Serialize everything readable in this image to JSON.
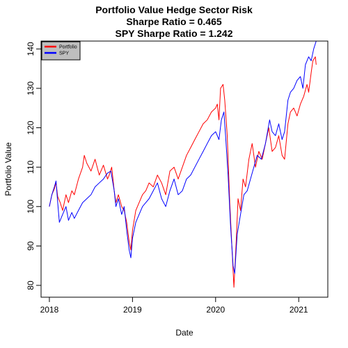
{
  "chart_data": {
    "type": "line",
    "title": [
      "Portfolio Value Hedge Sector Risk",
      "Sharpe Ratio = 0.465",
      "SPY Sharpe Ratio = 1.242"
    ],
    "xlabel": "Date",
    "ylabel": "Portfolio Value",
    "xlim": [
      2017.9,
      2021.35
    ],
    "ylim": [
      77,
      142
    ],
    "xticks": [
      2018,
      2019,
      2020,
      2021
    ],
    "yticks": [
      80,
      90,
      100,
      110,
      120,
      130,
      140
    ],
    "grid": false,
    "legend_position": "top-left",
    "series": [
      {
        "name": "Portfolio",
        "color": "#ff0000",
        "points": [
          [
            2018.0,
            100.0
          ],
          [
            2018.03,
            103.0
          ],
          [
            2018.06,
            104.5
          ],
          [
            2018.08,
            106.0
          ],
          [
            2018.1,
            102.5
          ],
          [
            2018.13,
            101.0
          ],
          [
            2018.16,
            99.0
          ],
          [
            2018.2,
            103.0
          ],
          [
            2018.23,
            101.0
          ],
          [
            2018.27,
            104.0
          ],
          [
            2018.3,
            103.0
          ],
          [
            2018.35,
            107.0
          ],
          [
            2018.4,
            110.0
          ],
          [
            2018.42,
            113.0
          ],
          [
            2018.45,
            111.0
          ],
          [
            2018.5,
            109.0
          ],
          [
            2018.55,
            112.0
          ],
          [
            2018.6,
            108.0
          ],
          [
            2018.65,
            110.5
          ],
          [
            2018.7,
            107.0
          ],
          [
            2018.72,
            108.0
          ],
          [
            2018.75,
            110.0
          ],
          [
            2018.78,
            104.0
          ],
          [
            2018.8,
            101.0
          ],
          [
            2018.83,
            103.0
          ],
          [
            2018.87,
            100.0
          ],
          [
            2018.9,
            99.0
          ],
          [
            2018.93,
            96.0
          ],
          [
            2018.96,
            91.0
          ],
          [
            2018.98,
            89.0
          ],
          [
            2019.0,
            94.0
          ],
          [
            2019.04,
            99.0
          ],
          [
            2019.08,
            101.0
          ],
          [
            2019.12,
            103.0
          ],
          [
            2019.16,
            104.0
          ],
          [
            2019.2,
            106.0
          ],
          [
            2019.25,
            105.0
          ],
          [
            2019.3,
            108.0
          ],
          [
            2019.35,
            106.0
          ],
          [
            2019.4,
            103.0
          ],
          [
            2019.45,
            109.0
          ],
          [
            2019.5,
            110.0
          ],
          [
            2019.55,
            107.0
          ],
          [
            2019.6,
            110.0
          ],
          [
            2019.65,
            113.0
          ],
          [
            2019.7,
            115.0
          ],
          [
            2019.75,
            117.0
          ],
          [
            2019.8,
            119.0
          ],
          [
            2019.85,
            121.0
          ],
          [
            2019.9,
            122.0
          ],
          [
            2019.95,
            124.0
          ],
          [
            2020.0,
            125.0
          ],
          [
            2020.02,
            126.0
          ],
          [
            2020.04,
            122.0
          ],
          [
            2020.06,
            130.0
          ],
          [
            2020.09,
            131.0
          ],
          [
            2020.11,
            127.0
          ],
          [
            2020.14,
            118.0
          ],
          [
            2020.17,
            101.0
          ],
          [
            2020.2,
            88.0
          ],
          [
            2020.22,
            79.5
          ],
          [
            2020.25,
            92.0
          ],
          [
            2020.27,
            102.0
          ],
          [
            2020.3,
            99.0
          ],
          [
            2020.33,
            107.0
          ],
          [
            2020.36,
            105.0
          ],
          [
            2020.4,
            112.0
          ],
          [
            2020.44,
            116.0
          ],
          [
            2020.48,
            110.0
          ],
          [
            2020.52,
            114.0
          ],
          [
            2020.56,
            112.0
          ],
          [
            2020.6,
            116.0
          ],
          [
            2020.64,
            120.0
          ],
          [
            2020.68,
            114.0
          ],
          [
            2020.72,
            115.0
          ],
          [
            2020.76,
            118.0
          ],
          [
            2020.8,
            113.0
          ],
          [
            2020.83,
            112.0
          ],
          [
            2020.87,
            121.0
          ],
          [
            2020.9,
            124.0
          ],
          [
            2020.94,
            125.0
          ],
          [
            2020.98,
            123.0
          ],
          [
            2021.02,
            126.0
          ],
          [
            2021.06,
            128.0
          ],
          [
            2021.1,
            131.0
          ],
          [
            2021.12,
            129.0
          ],
          [
            2021.15,
            134.0
          ],
          [
            2021.17,
            137.0
          ],
          [
            2021.2,
            138.0
          ],
          [
            2021.21,
            136.0
          ]
        ]
      },
      {
        "name": "SPY",
        "color": "#0000ff",
        "points": [
          [
            2018.0,
            100.0
          ],
          [
            2018.03,
            103.0
          ],
          [
            2018.06,
            105.0
          ],
          [
            2018.08,
            106.5
          ],
          [
            2018.1,
            101.0
          ],
          [
            2018.12,
            96.0
          ],
          [
            2018.16,
            98.0
          ],
          [
            2018.2,
            100.0
          ],
          [
            2018.23,
            96.5
          ],
          [
            2018.27,
            98.5
          ],
          [
            2018.3,
            97.0
          ],
          [
            2018.35,
            99.0
          ],
          [
            2018.4,
            101.0
          ],
          [
            2018.45,
            102.0
          ],
          [
            2018.5,
            103.0
          ],
          [
            2018.55,
            105.0
          ],
          [
            2018.6,
            106.0
          ],
          [
            2018.65,
            107.0
          ],
          [
            2018.7,
            108.5
          ],
          [
            2018.74,
            109.0
          ],
          [
            2018.78,
            104.0
          ],
          [
            2018.8,
            100.0
          ],
          [
            2018.83,
            102.0
          ],
          [
            2018.87,
            98.0
          ],
          [
            2018.9,
            100.0
          ],
          [
            2018.93,
            94.0
          ],
          [
            2018.96,
            89.0
          ],
          [
            2018.98,
            87.0
          ],
          [
            2019.0,
            92.0
          ],
          [
            2019.04,
            96.0
          ],
          [
            2019.08,
            98.0
          ],
          [
            2019.12,
            100.0
          ],
          [
            2019.16,
            101.0
          ],
          [
            2019.2,
            102.0
          ],
          [
            2019.25,
            104.0
          ],
          [
            2019.3,
            106.0
          ],
          [
            2019.35,
            102.0
          ],
          [
            2019.4,
            100.0
          ],
          [
            2019.45,
            104.0
          ],
          [
            2019.5,
            107.0
          ],
          [
            2019.55,
            103.0
          ],
          [
            2019.6,
            104.0
          ],
          [
            2019.65,
            107.0
          ],
          [
            2019.7,
            108.0
          ],
          [
            2019.75,
            110.0
          ],
          [
            2019.8,
            112.0
          ],
          [
            2019.85,
            114.0
          ],
          [
            2019.9,
            116.0
          ],
          [
            2019.95,
            118.0
          ],
          [
            2020.0,
            119.0
          ],
          [
            2020.04,
            117.0
          ],
          [
            2020.07,
            122.0
          ],
          [
            2020.1,
            124.0
          ],
          [
            2020.12,
            118.0
          ],
          [
            2020.15,
            108.0
          ],
          [
            2020.18,
            95.0
          ],
          [
            2020.21,
            85.0
          ],
          [
            2020.23,
            83.0
          ],
          [
            2020.26,
            93.0
          ],
          [
            2020.3,
            98.0
          ],
          [
            2020.34,
            103.0
          ],
          [
            2020.38,
            104.0
          ],
          [
            2020.42,
            107.0
          ],
          [
            2020.46,
            110.0
          ],
          [
            2020.5,
            113.0
          ],
          [
            2020.55,
            112.0
          ],
          [
            2020.6,
            116.0
          ],
          [
            2020.65,
            122.0
          ],
          [
            2020.68,
            119.0
          ],
          [
            2020.72,
            118.0
          ],
          [
            2020.76,
            121.0
          ],
          [
            2020.8,
            117.0
          ],
          [
            2020.83,
            119.0
          ],
          [
            2020.87,
            127.0
          ],
          [
            2020.9,
            129.0
          ],
          [
            2020.94,
            130.0
          ],
          [
            2020.98,
            132.0
          ],
          [
            2021.02,
            133.0
          ],
          [
            2021.05,
            130.0
          ],
          [
            2021.08,
            136.0
          ],
          [
            2021.12,
            138.0
          ],
          [
            2021.15,
            137.0
          ],
          [
            2021.18,
            140.0
          ],
          [
            2021.21,
            142.0
          ]
        ]
      }
    ]
  }
}
